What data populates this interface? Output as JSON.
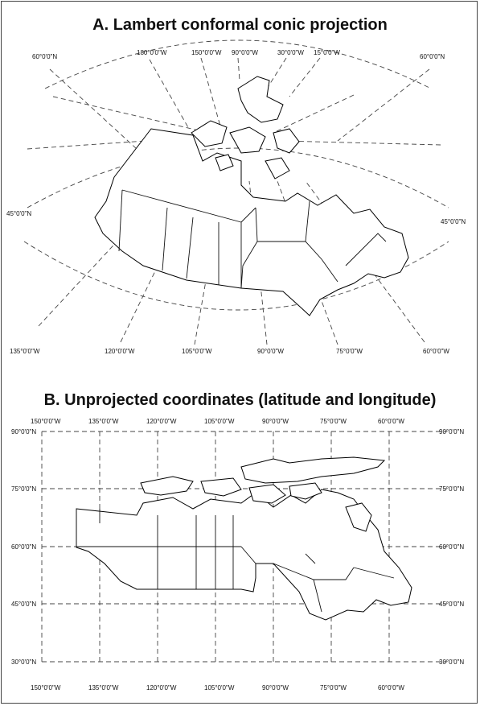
{
  "panel_a": {
    "title": "A. Lambert conformal conic projection",
    "top_labels": [
      "60°0'0\"N",
      "180°0'0\"W",
      "150°0'0\"W",
      "90°0'0\"W",
      "30°0'0\"W",
      "15°0'0\"W",
      "60°0'0\"N"
    ],
    "left_label": "45°0'0\"N",
    "right_label": "45°0'0\"N",
    "bottom_labels": [
      "135°0'0\"W",
      "120°0'0\"W",
      "105°0'0\"W",
      "90°0'0\"W",
      "75°0'0\"W",
      "60°0'0\"W"
    ]
  },
  "panel_b": {
    "title": "B. Unprojected coordinates (latitude and longitude)",
    "top_labels": [
      "150°0'0\"W",
      "135°0'0\"W",
      "120°0'0\"W",
      "105°0'0\"W",
      "90°0'0\"W",
      "75°0'0\"W",
      "60°0'0\"W"
    ],
    "bottom_labels": [
      "150°0'0\"W",
      "135°0'0\"W",
      "120°0'0\"W",
      "105°0'0\"W",
      "90°0'0\"W",
      "75°0'0\"W",
      "60°0'0\"W"
    ],
    "left_labels": [
      "90°0'0\"N",
      "75°0'0\"N",
      "60°0'0\"N",
      "45°0'0\"N",
      "30°0'0\"N"
    ],
    "right_labels": [
      "90°0'0\"N",
      "75°0'0\"N",
      "60°0'0\"N",
      "45°0'0\"N",
      "30°0'0\"N"
    ]
  }
}
